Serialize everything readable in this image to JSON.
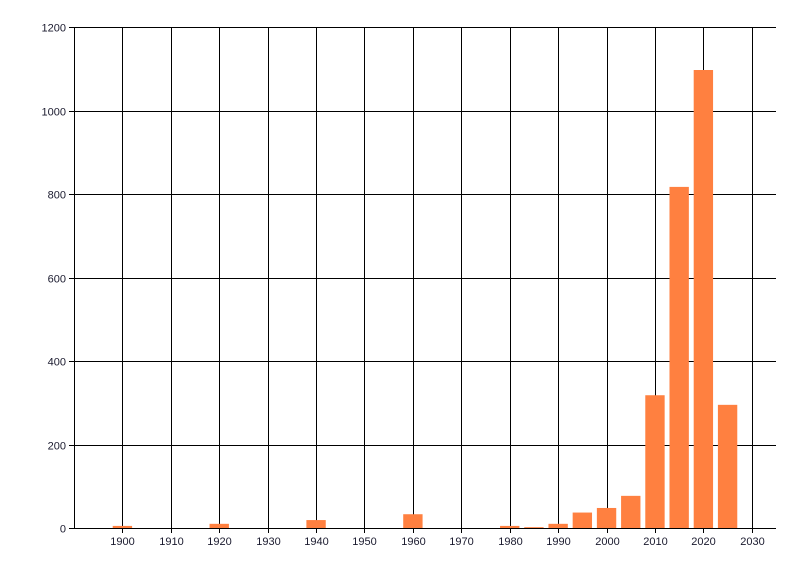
{
  "chart_data": {
    "type": "bar",
    "title": "",
    "xlabel": "",
    "ylabel": "",
    "xlim": [
      1890,
      2035
    ],
    "ylim": [
      0,
      1200
    ],
    "xticks": [
      1900,
      1910,
      1920,
      1930,
      1940,
      1950,
      1960,
      1970,
      1980,
      1990,
      2000,
      2010,
      2020,
      2030
    ],
    "yticks": [
      0,
      200,
      400,
      600,
      800,
      1000,
      1200
    ],
    "grid": true,
    "bar_color": "#ff8040",
    "bar_width_years": 4,
    "x": [
      1900,
      1920,
      1940,
      1960,
      1980,
      1985,
      1990,
      1995,
      2000,
      2005,
      2010,
      2015,
      2020,
      2025
    ],
    "values": [
      5,
      10,
      19,
      33,
      5,
      2,
      10,
      37,
      48,
      77,
      318,
      817,
      1097,
      295
    ]
  }
}
